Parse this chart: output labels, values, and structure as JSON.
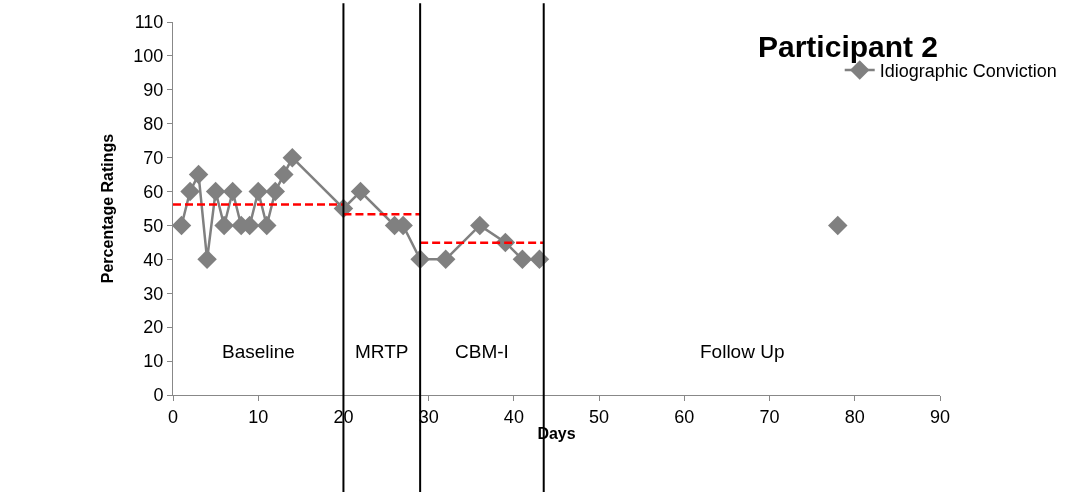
{
  "chart_data": {
    "type": "line",
    "title": "Participant 2",
    "xlabel": "Days",
    "ylabel": "Percentage Ratings",
    "series": [
      {
        "name": "Idiographic Conviction",
        "color": "#808080",
        "marker": "diamond",
        "x": [
          1,
          2,
          3,
          4,
          5,
          6,
          7,
          8,
          9,
          10,
          11,
          12,
          13,
          14,
          20,
          22,
          26,
          27,
          29,
          32,
          36,
          39,
          41,
          43,
          60,
          78
        ],
        "values": [
          50,
          60,
          65,
          40,
          60,
          50,
          60,
          50,
          50,
          60,
          50,
          60,
          65,
          70,
          55,
          60,
          50,
          50,
          40,
          40,
          50,
          45,
          40,
          40,
          null,
          50
        ]
      },
      {
        "color": "#ff0000",
        "line_style": "dashed",
        "marker": "none",
        "x": [
          0,
          20
        ],
        "values": [
          56.2,
          56.2
        ]
      },
      {
        "color": "#ff0000",
        "line_style": "dashed",
        "marker": "none",
        "x": [
          20,
          29
        ],
        "values": [
          53.3,
          53.3
        ]
      },
      {
        "color": "#ff0000",
        "line_style": "dashed",
        "marker": "none",
        "x": [
          29,
          43.5
        ],
        "values": [
          44.9,
          44.9
        ]
      }
    ],
    "xlim": [
      0,
      90
    ],
    "xticks": [
      0,
      10,
      20,
      30,
      40,
      50,
      60,
      70,
      80,
      90
    ],
    "ylim": [
      0,
      110
    ],
    "yticks": [
      0,
      10,
      20,
      30,
      40,
      50,
      60,
      70,
      80,
      90,
      100,
      110
    ],
    "ref_lines": [
      {
        "axis": "x",
        "value": 20,
        "color": "#000000"
      },
      {
        "axis": "x",
        "value": 29,
        "color": "#000000"
      },
      {
        "axis": "x",
        "value": 43.5,
        "color": "#000000"
      }
    ],
    "annotations": [
      "Baseline",
      "MRTP",
      "CBM-I",
      "Follow Up"
    ],
    "legend": "top right"
  }
}
